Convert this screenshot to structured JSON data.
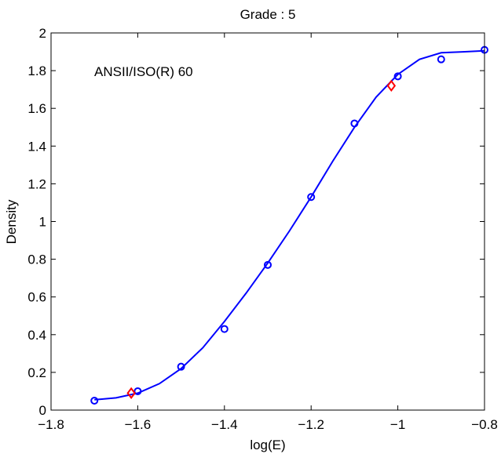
{
  "chart_data": {
    "type": "line",
    "title": "Grade : 5",
    "xlabel": "log(E)",
    "ylabel": "Density",
    "annotation": "ANSII/ISO(R)  60",
    "xlim": [
      -1.8,
      -0.8
    ],
    "ylim": [
      0,
      2
    ],
    "xticks": [
      -1.8,
      -1.6,
      -1.4,
      -1.2,
      -1,
      -0.8
    ],
    "xtick_labels": [
      "−1.8",
      "−1.6",
      "−1.4",
      "−1.2",
      "−1",
      "−0.8"
    ],
    "yticks": [
      0,
      0.2,
      0.4,
      0.6,
      0.8,
      1,
      1.2,
      1.4,
      1.6,
      1.8,
      2
    ],
    "ytick_labels": [
      "0",
      "0.2",
      "0.4",
      "0.6",
      "0.8",
      "1",
      "1.2",
      "1.4",
      "1.6",
      "1.8",
      "2"
    ],
    "grid": false,
    "legend": "none",
    "series": [
      {
        "kind": "line",
        "color": "#0000ff",
        "x": [
          -1.7,
          -1.65,
          -1.6,
          -1.55,
          -1.5,
          -1.45,
          -1.4,
          -1.35,
          -1.3,
          -1.25,
          -1.2,
          -1.15,
          -1.1,
          -1.05,
          -1.0,
          -0.95,
          -0.9,
          -0.85,
          -0.8
        ],
        "y": [
          0.055,
          0.065,
          0.09,
          0.14,
          0.22,
          0.33,
          0.47,
          0.62,
          0.78,
          0.95,
          1.13,
          1.32,
          1.5,
          1.66,
          1.78,
          1.86,
          1.895,
          1.9,
          1.905
        ]
      },
      {
        "kind": "circle-markers",
        "color": "#0000ff",
        "x": [
          -1.7,
          -1.6,
          -1.5,
          -1.4,
          -1.3,
          -1.2,
          -1.1,
          -1.0,
          -0.9,
          -0.8
        ],
        "y": [
          0.05,
          0.1,
          0.23,
          0.43,
          0.77,
          1.13,
          1.52,
          1.77,
          1.86,
          1.91
        ]
      },
      {
        "kind": "diamond-markers",
        "color": "#ff0000",
        "x": [
          -1.615,
          -1.015
        ],
        "y": [
          0.09,
          1.72
        ]
      }
    ]
  }
}
